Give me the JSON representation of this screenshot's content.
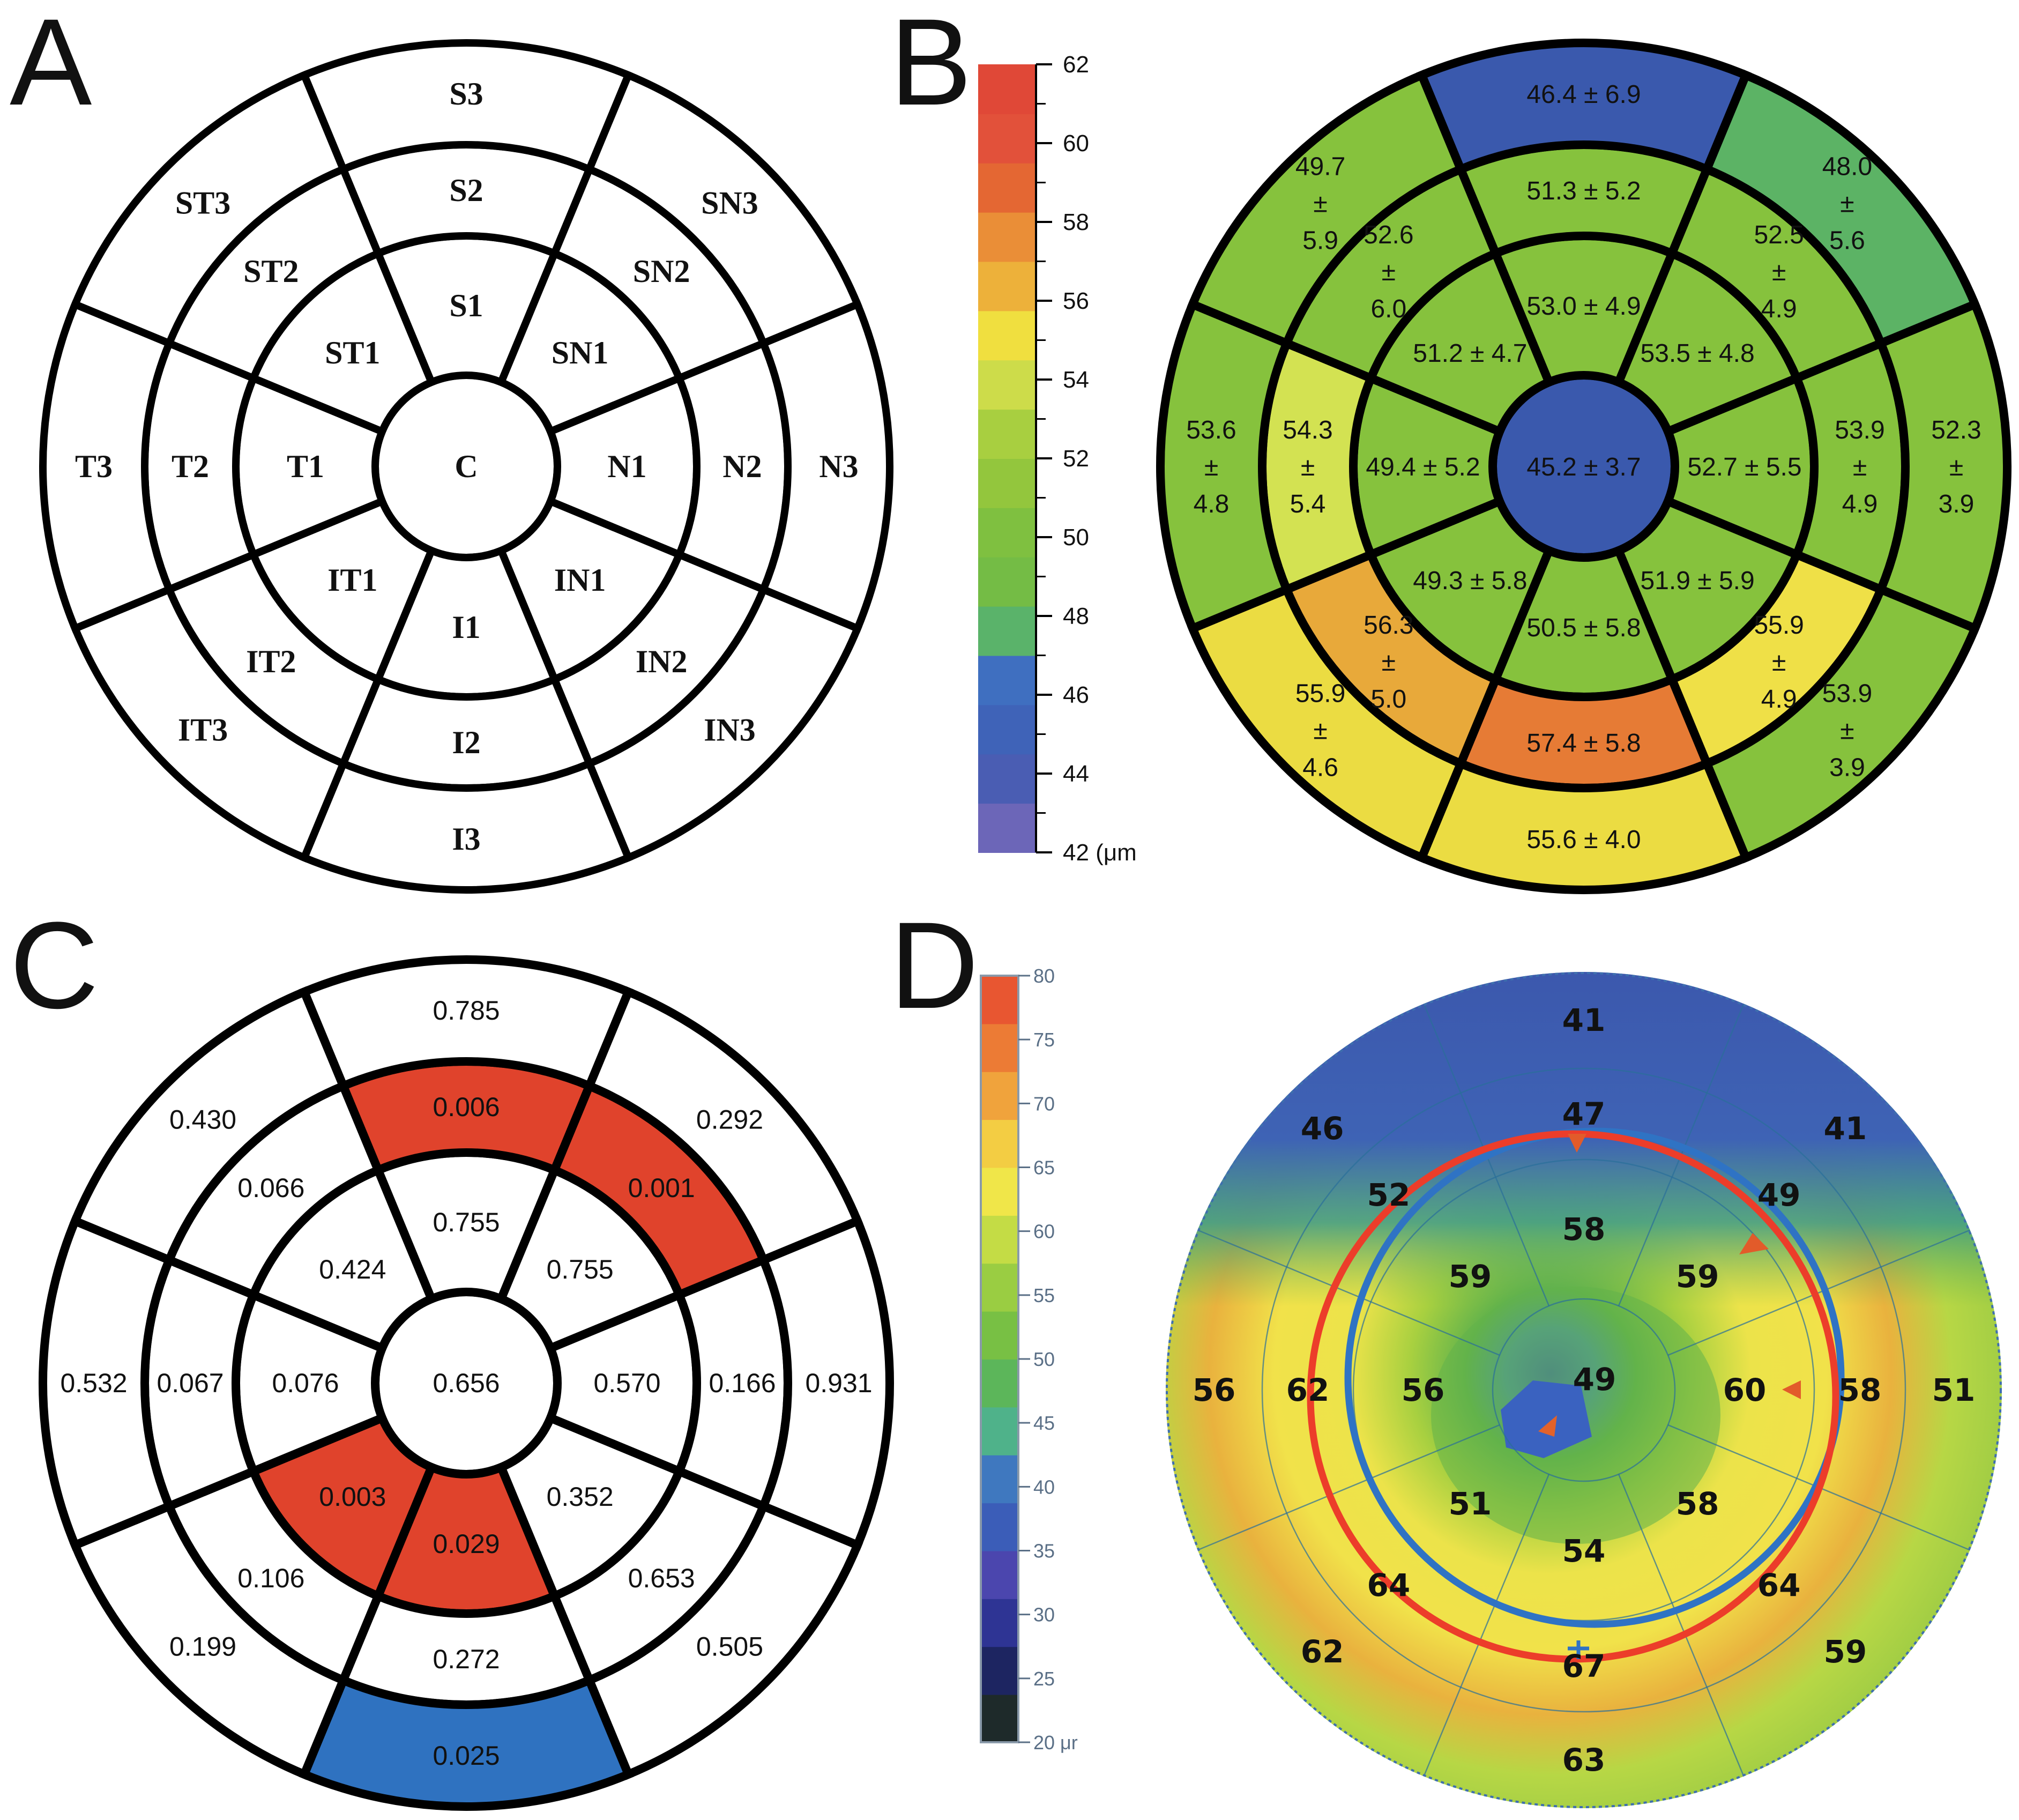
{
  "panels": {
    "A": {
      "label": "A",
      "sectors": [
        {
          "id": "C",
          "text": "C"
        },
        {
          "id": "S1",
          "text": "S1"
        },
        {
          "id": "SN1",
          "text": "SN1"
        },
        {
          "id": "N1",
          "text": "N1"
        },
        {
          "id": "IN1",
          "text": "IN1"
        },
        {
          "id": "I1",
          "text": "I1"
        },
        {
          "id": "IT1",
          "text": "IT1"
        },
        {
          "id": "T1",
          "text": "T1"
        },
        {
          "id": "ST1",
          "text": "ST1"
        },
        {
          "id": "S2",
          "text": "S2"
        },
        {
          "id": "SN2",
          "text": "SN2"
        },
        {
          "id": "N2",
          "text": "N2"
        },
        {
          "id": "IN2",
          "text": "IN2"
        },
        {
          "id": "I2",
          "text": "I2"
        },
        {
          "id": "IT2",
          "text": "IT2"
        },
        {
          "id": "T2",
          "text": "T2"
        },
        {
          "id": "ST2",
          "text": "ST2"
        },
        {
          "id": "S3",
          "text": "S3"
        },
        {
          "id": "SN3",
          "text": "SN3"
        },
        {
          "id": "N3",
          "text": "N3"
        },
        {
          "id": "IN3",
          "text": "IN3"
        },
        {
          "id": "I3",
          "text": "I3"
        },
        {
          "id": "IT3",
          "text": "IT3"
        },
        {
          "id": "T3",
          "text": "T3"
        },
        {
          "id": "ST3",
          "text": "ST3"
        }
      ]
    },
    "B": {
      "label": "B",
      "unit_label": "42 (μm",
      "scale_ticks": [
        "62",
        "60",
        "58",
        "56",
        "54",
        "52",
        "50",
        "48",
        "46",
        "44"
      ],
      "sectors": [
        {
          "id": "C",
          "mean": "45.2",
          "sd": "3.7",
          "color": "#3a59ad"
        },
        {
          "id": "S1",
          "mean": "53.0",
          "sd": "4.9",
          "color": "#86c23d"
        },
        {
          "id": "SN1",
          "mean": "53.5",
          "sd": "4.8",
          "color": "#86c23d"
        },
        {
          "id": "N1",
          "mean": "52.7",
          "sd": "5.5",
          "color": "#86c23d"
        },
        {
          "id": "IN1",
          "mean": "51.9",
          "sd": "5.9",
          "color": "#86c23d"
        },
        {
          "id": "I1",
          "mean": "50.5",
          "sd": "5.8",
          "color": "#86c23d"
        },
        {
          "id": "IT1",
          "mean": "49.3",
          "sd": "5.8",
          "color": "#86c23d"
        },
        {
          "id": "T1",
          "mean": "49.4",
          "sd": "5.2",
          "color": "#86c23d"
        },
        {
          "id": "ST1",
          "mean": "51.2",
          "sd": "4.7",
          "color": "#86c23d"
        },
        {
          "id": "S2",
          "mean": "51.3",
          "sd": "5.2",
          "color": "#86c23d"
        },
        {
          "id": "SN2",
          "mean": "52.5",
          "sd": "4.9",
          "color": "#86c23d"
        },
        {
          "id": "N2",
          "mean": "53.9",
          "sd": "4.9",
          "color": "#86c23d"
        },
        {
          "id": "IN2",
          "mean": "55.9",
          "sd": "4.9",
          "color": "#efe047"
        },
        {
          "id": "I2",
          "mean": "57.4",
          "sd": "5.8",
          "color": "#e67b35"
        },
        {
          "id": "IT2",
          "mean": "56.3",
          "sd": "5.0",
          "color": "#e8a93a"
        },
        {
          "id": "T2",
          "mean": "54.3",
          "sd": "5.4",
          "color": "#d3e252"
        },
        {
          "id": "ST2",
          "mean": "52.6",
          "sd": "6.0",
          "color": "#86c23d"
        },
        {
          "id": "S3",
          "mean": "46.4",
          "sd": "6.9",
          "color": "#3a59ad"
        },
        {
          "id": "SN3",
          "mean": "48.0",
          "sd": "5.6",
          "color": "#5cb365"
        },
        {
          "id": "N3",
          "mean": "52.3",
          "sd": "3.9",
          "color": "#86c23d"
        },
        {
          "id": "IN3",
          "mean": "53.9",
          "sd": "3.9",
          "color": "#86c23d"
        },
        {
          "id": "I3",
          "mean": "55.6",
          "sd": "4.0",
          "color": "#ebdc42"
        },
        {
          "id": "IT3",
          "mean": "55.9",
          "sd": "4.6",
          "color": "#ebdc42"
        },
        {
          "id": "T3",
          "mean": "53.6",
          "sd": "4.8",
          "color": "#86c23d"
        },
        {
          "id": "ST3",
          "mean": "49.7",
          "sd": "5.9",
          "color": "#86c23d"
        }
      ]
    },
    "C": {
      "label": "C",
      "sectors": [
        {
          "id": "C",
          "value": "0.656",
          "color": "#ffffff"
        },
        {
          "id": "S1",
          "value": "0.755",
          "color": "#ffffff"
        },
        {
          "id": "SN1",
          "value": "0.755",
          "color": "#ffffff"
        },
        {
          "id": "N1",
          "value": "0.570",
          "color": "#ffffff"
        },
        {
          "id": "IN1",
          "value": "0.352",
          "color": "#ffffff"
        },
        {
          "id": "I1",
          "value": "0.029",
          "color": "#e0432c"
        },
        {
          "id": "IT1",
          "value": "0.003",
          "color": "#e0432c"
        },
        {
          "id": "T1",
          "value": "0.076",
          "color": "#ffffff"
        },
        {
          "id": "ST1",
          "value": "0.424",
          "color": "#ffffff"
        },
        {
          "id": "S2",
          "value": "0.006",
          "color": "#e0432c"
        },
        {
          "id": "SN2",
          "value": "0.001",
          "color": "#e0432c"
        },
        {
          "id": "N2",
          "value": "0.166",
          "color": "#ffffff"
        },
        {
          "id": "IN2",
          "value": "0.653",
          "color": "#ffffff"
        },
        {
          "id": "I2",
          "value": "0.272",
          "color": "#ffffff"
        },
        {
          "id": "IT2",
          "value": "0.106",
          "color": "#ffffff"
        },
        {
          "id": "T2",
          "value": "0.067",
          "color": "#ffffff"
        },
        {
          "id": "ST2",
          "value": "0.066",
          "color": "#ffffff"
        },
        {
          "id": "S3",
          "value": "0.785",
          "color": "#ffffff"
        },
        {
          "id": "SN3",
          "value": "0.292",
          "color": "#ffffff"
        },
        {
          "id": "N3",
          "value": "0.931",
          "color": "#ffffff"
        },
        {
          "id": "IN3",
          "value": "0.505",
          "color": "#ffffff"
        },
        {
          "id": "I3",
          "value": "0.025",
          "color": "#2f72c0"
        },
        {
          "id": "IT3",
          "value": "0.199",
          "color": "#ffffff"
        },
        {
          "id": "T3",
          "value": "0.532",
          "color": "#ffffff"
        },
        {
          "id": "ST3",
          "value": "0.430",
          "color": "#ffffff"
        }
      ]
    },
    "D": {
      "label": "D",
      "unit_label": "20 μr",
      "scale_ticks": [
        "80",
        "75",
        "70",
        "65",
        "60",
        "55",
        "50",
        "45",
        "40",
        "35",
        "30",
        "25"
      ],
      "map_values": [
        {
          "id": "C",
          "text": "49"
        },
        {
          "id": "S1",
          "text": "58"
        },
        {
          "id": "SN1",
          "text": "59"
        },
        {
          "id": "N1",
          "text": "60"
        },
        {
          "id": "IN1",
          "text": "58"
        },
        {
          "id": "I1",
          "text": "54"
        },
        {
          "id": "IT1",
          "text": "51"
        },
        {
          "id": "T1",
          "text": "56"
        },
        {
          "id": "ST1",
          "text": "59"
        },
        {
          "id": "S2",
          "text": "47"
        },
        {
          "id": "SN2",
          "text": "49"
        },
        {
          "id": "N2",
          "text": "58"
        },
        {
          "id": "IN2",
          "text": "64"
        },
        {
          "id": "I2",
          "text": "67"
        },
        {
          "id": "IT2",
          "text": "64"
        },
        {
          "id": "T2",
          "text": "62"
        },
        {
          "id": "ST2",
          "text": "52"
        },
        {
          "id": "S3",
          "text": "41"
        },
        {
          "id": "SN3",
          "text": "41"
        },
        {
          "id": "N3",
          "text": "51"
        },
        {
          "id": "IN3",
          "text": "59"
        },
        {
          "id": "I3",
          "text": "63"
        },
        {
          "id": "IT3",
          "text": "62"
        },
        {
          "id": "T3",
          "text": "56"
        },
        {
          "id": "ST3",
          "text": "46"
        }
      ]
    }
  }
}
